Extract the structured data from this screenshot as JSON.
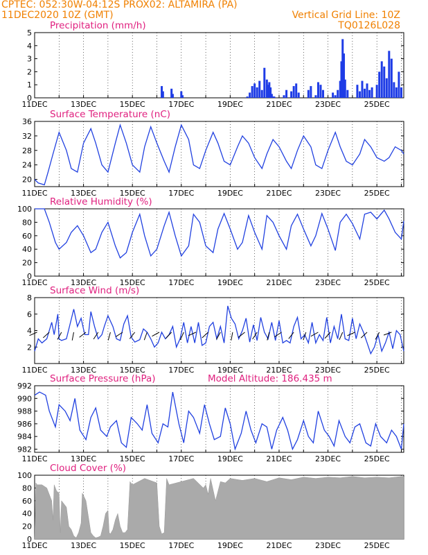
{
  "header": {
    "left1": "CPTEC:   052:30W-04:12S   PROX02: ALTAMIRA (PA)",
    "left2": "11DEC2020  10Z (GMT)",
    "right2": "Vertical Grid Line: 10Z",
    "right3": "TQ0126L028"
  },
  "x_tick_labels": [
    "11DEC",
    "13DEC",
    "15DEC",
    "17DEC",
    "19DEC",
    "21DEC",
    "23DEC",
    "25DEC"
  ],
  "colors": {
    "header": "#f08000",
    "title": "#e0207f",
    "series": "#2040e0",
    "precip_bar": "#1e3ce6",
    "cloud_fill": "#aaaaaa",
    "arrow": "#000000"
  },
  "chart_data": [
    {
      "type": "bar",
      "title": "Precipitation (mm/h)",
      "ylim": [
        0,
        5
      ],
      "yticks": [
        0,
        1,
        2,
        3,
        4,
        5
      ],
      "x_range_days": [
        0,
        15.1
      ],
      "x": [
        5.2,
        5.25,
        5.6,
        5.65,
        6.0,
        6.05,
        8.7,
        8.8,
        8.9,
        9.0,
        9.1,
        9.2,
        9.3,
        9.4,
        9.5,
        9.55,
        9.6,
        9.65,
        9.7,
        9.75,
        9.8,
        10.2,
        10.3,
        10.5,
        10.6,
        10.7,
        10.8,
        11.2,
        11.3,
        11.5,
        11.6,
        11.7,
        11.8,
        12.2,
        12.3,
        12.4,
        12.5,
        12.55,
        12.6,
        12.65,
        12.7,
        12.8,
        13.2,
        13.3,
        13.4,
        13.5,
        13.6,
        13.7,
        13.8,
        14.0,
        14.1,
        14.2,
        14.3,
        14.4,
        14.5,
        14.6,
        14.7,
        14.8,
        14.9,
        15.0
      ],
      "values": [
        0.9,
        0.5,
        0.7,
        0.3,
        0.5,
        0.2,
        0.1,
        0.4,
        0.9,
        1.1,
        0.8,
        1.3,
        0.6,
        2.3,
        1.4,
        1.0,
        1.2,
        0.8,
        0.3,
        0.1,
        0.1,
        0.2,
        0.6,
        0.5,
        0.9,
        1.1,
        0.4,
        0.6,
        0.9,
        0.2,
        1.2,
        1.0,
        0.6,
        0.4,
        0.2,
        0.6,
        1.3,
        2.8,
        4.5,
        3.4,
        1.4,
        0.6,
        1.0,
        0.5,
        1.3,
        0.7,
        1.1,
        0.6,
        0.8,
        1.0,
        2.0,
        2.8,
        2.4,
        1.5,
        3.6,
        3.0,
        1.2,
        0.8,
        2.0,
        0.8
      ]
    },
    {
      "type": "line",
      "title": "Surface Temperature (nC)",
      "ylim": [
        18,
        36
      ],
      "yticks": [
        20,
        24,
        28,
        32,
        36
      ],
      "x_range_days": [
        0,
        15.1
      ],
      "x": [
        0,
        0.15,
        0.4,
        0.55,
        0.75,
        1.0,
        1.3,
        1.5,
        1.75,
        2.0,
        2.3,
        2.5,
        2.75,
        3.0,
        3.3,
        3.5,
        3.75,
        4.0,
        4.3,
        4.5,
        4.75,
        5.0,
        5.3,
        5.5,
        5.75,
        6.0,
        6.3,
        6.5,
        6.75,
        7.0,
        7.3,
        7.5,
        7.75,
        8.0,
        8.3,
        8.5,
        8.75,
        9.0,
        9.3,
        9.5,
        9.75,
        10.0,
        10.3,
        10.5,
        10.75,
        11.0,
        11.3,
        11.5,
        11.75,
        12.0,
        12.3,
        12.5,
        12.75,
        13.0,
        13.3,
        13.5,
        13.75,
        14.0,
        14.3,
        14.5,
        14.75,
        15.0,
        15.1
      ],
      "values": [
        20,
        19,
        18.5,
        22,
        27,
        33,
        28,
        23,
        22,
        30,
        34,
        30,
        24,
        22,
        30,
        35,
        30,
        24,
        22,
        29,
        34.5,
        30,
        25,
        22,
        29,
        35,
        31,
        24,
        23,
        28,
        33,
        30,
        25,
        24,
        29,
        32,
        30,
        26,
        23,
        27,
        31,
        29,
        25,
        23,
        28,
        32,
        29,
        24,
        23,
        28,
        33,
        29,
        25,
        24,
        27,
        31,
        29,
        26,
        25,
        26,
        29,
        28,
        27
      ]
    },
    {
      "type": "line",
      "title": "Relative Humidity (%)",
      "ylim": [
        0,
        100
      ],
      "yticks": [
        0,
        20,
        40,
        60,
        80,
        100
      ],
      "x_range_days": [
        0,
        15.1
      ],
      "x": [
        0,
        0.4,
        0.6,
        0.85,
        1.0,
        1.3,
        1.5,
        1.75,
        2.0,
        2.3,
        2.5,
        2.75,
        3.0,
        3.3,
        3.5,
        3.75,
        4.0,
        4.3,
        4.5,
        4.75,
        5.0,
        5.3,
        5.5,
        5.75,
        6.0,
        6.3,
        6.5,
        6.75,
        7.0,
        7.3,
        7.5,
        7.75,
        8.0,
        8.3,
        8.5,
        8.75,
        9.0,
        9.3,
        9.5,
        9.75,
        10.0,
        10.3,
        10.5,
        10.75,
        11.0,
        11.3,
        11.5,
        11.75,
        12.0,
        12.3,
        12.5,
        12.75,
        13.0,
        13.3,
        13.5,
        13.75,
        14.0,
        14.3,
        14.5,
        14.75,
        15.0,
        15.1
      ],
      "values": [
        100,
        100,
        80,
        50,
        40,
        50,
        65,
        75,
        60,
        35,
        40,
        65,
        80,
        45,
        27,
        35,
        65,
        92,
        60,
        30,
        40,
        75,
        95,
        60,
        30,
        45,
        92,
        80,
        45,
        35,
        70,
        93,
        70,
        40,
        50,
        90,
        65,
        40,
        90,
        80,
        60,
        40,
        75,
        92,
        70,
        45,
        60,
        93,
        70,
        38,
        80,
        92,
        78,
        55,
        92,
        95,
        85,
        98,
        85,
        65,
        55,
        82
      ]
    },
    {
      "type": "line",
      "title": "Surface Wind (m/s)",
      "ylim": [
        0,
        8
      ],
      "yticks": [
        2,
        4,
        6,
        8
      ],
      "x_range_days": [
        0,
        15.1
      ],
      "x": [
        0,
        0.15,
        0.3,
        0.5,
        0.7,
        0.8,
        0.95,
        1.0,
        1.1,
        1.3,
        1.45,
        1.6,
        1.75,
        1.9,
        2.05,
        2.2,
        2.3,
        2.45,
        2.6,
        2.75,
        2.85,
        3.0,
        3.2,
        3.35,
        3.5,
        3.65,
        3.8,
        3.95,
        4.1,
        4.3,
        4.45,
        4.6,
        4.75,
        4.9,
        5.05,
        5.2,
        5.35,
        5.5,
        5.65,
        5.8,
        5.95,
        6.1,
        6.25,
        6.4,
        6.55,
        6.7,
        6.85,
        7.0,
        7.15,
        7.3,
        7.45,
        7.6,
        7.75,
        7.9,
        8.05,
        8.2,
        8.35,
        8.5,
        8.65,
        8.8,
        8.95,
        9.1,
        9.25,
        9.4,
        9.55,
        9.7,
        9.85,
        10.0,
        10.15,
        10.3,
        10.45,
        10.6,
        10.75,
        10.9,
        11.05,
        11.2,
        11.35,
        11.5,
        11.65,
        11.8,
        11.95,
        12.1,
        12.25,
        12.4,
        12.55,
        12.7,
        12.85,
        13.0,
        13.15,
        13.3,
        13.45,
        13.6,
        13.75,
        13.9,
        14.05,
        14.2,
        14.35,
        14.5,
        14.65,
        14.8,
        14.95,
        15.1
      ],
      "values": [
        1.5,
        3.0,
        2.5,
        3.0,
        5.0,
        3.5,
        6.0,
        3.0,
        2.8,
        3.0,
        4.8,
        6.6,
        4.5,
        5.5,
        3.5,
        3.5,
        6.3,
        4.5,
        3.0,
        3.5,
        4.5,
        5.8,
        4.5,
        3.0,
        2.8,
        4.8,
        5.8,
        3.2,
        2.6,
        2.9,
        4.2,
        3.8,
        3.0,
        2.0,
        2.5,
        3.8,
        3.0,
        3.5,
        4.5,
        2.0,
        3.0,
        5.0,
        2.5,
        4.5,
        2.5,
        5.0,
        2.2,
        2.5,
        4.5,
        5.0,
        3.0,
        4.5,
        2.5,
        7.0,
        5.5,
        4.8,
        3.0,
        4.0,
        5.5,
        2.6,
        4.7,
        2.8,
        5.6,
        3.8,
        3.0,
        5.0,
        2.8,
        5.2,
        2.5,
        2.8,
        2.5,
        4.5,
        5.6,
        3.0,
        3.5,
        2.5,
        5.0,
        2.5,
        3.5,
        2.8,
        5.6,
        2.5,
        4.5,
        3.0,
        6.0,
        3.0,
        2.8,
        5.5,
        3.0,
        4.8,
        3.8,
        2.5,
        1.2,
        2.0,
        3.5,
        1.5,
        2.5,
        3.8,
        1.8,
        4.0,
        3.5,
        1.5
      ]
    },
    {
      "type": "line",
      "title": "Surface Pressure (hPa)",
      "annotation": "Model Altitude: 186.435 m",
      "ylim": [
        981.5,
        992
      ],
      "yticks": [
        982,
        984,
        986,
        988,
        990,
        992
      ],
      "x_range_days": [
        0,
        15.1
      ],
      "x": [
        0,
        0.2,
        0.45,
        0.6,
        0.85,
        1.0,
        1.25,
        1.45,
        1.65,
        1.85,
        2.1,
        2.3,
        2.5,
        2.7,
        2.95,
        3.1,
        3.35,
        3.55,
        3.75,
        3.95,
        4.2,
        4.4,
        4.6,
        4.8,
        5.05,
        5.25,
        5.45,
        5.65,
        5.9,
        6.1,
        6.3,
        6.5,
        6.75,
        6.95,
        7.15,
        7.35,
        7.6,
        7.8,
        8.0,
        8.2,
        8.45,
        8.65,
        8.85,
        9.05,
        9.3,
        9.5,
        9.7,
        9.9,
        10.15,
        10.35,
        10.55,
        10.75,
        11.0,
        11.2,
        11.4,
        11.6,
        11.85,
        12.05,
        12.25,
        12.45,
        12.7,
        12.9,
        13.1,
        13.3,
        13.55,
        13.75,
        13.95,
        14.15,
        14.4,
        14.6,
        14.8,
        15.0,
        15.1
      ],
      "values": [
        990.5,
        991,
        990.5,
        988,
        985.5,
        989,
        988,
        986.5,
        990,
        985,
        983.5,
        987,
        988.5,
        985,
        984,
        985.5,
        986.5,
        983,
        982.3,
        987,
        986,
        985,
        989,
        984.5,
        983,
        986,
        985.5,
        991,
        986,
        983,
        988,
        987,
        984.5,
        989,
        986,
        983.5,
        984,
        988.5,
        986,
        982,
        984.5,
        988,
        985,
        983,
        986,
        985.5,
        982,
        985,
        987,
        985,
        982,
        983.5,
        986.5,
        984,
        983,
        988,
        985,
        984,
        982.5,
        986.5,
        984,
        983,
        985.5,
        986,
        983,
        982.5,
        986,
        984,
        983,
        985,
        984,
        982,
        986
      ]
    },
    {
      "type": "area",
      "title": "Cloud Cover (%)",
      "ylim": [
        0,
        100
      ],
      "yticks": [
        0,
        20,
        40,
        60,
        80,
        100
      ],
      "x_range_days": [
        0,
        15.1
      ],
      "x": [
        0,
        0.05,
        0.1,
        0.3,
        0.5,
        0.7,
        0.75,
        0.8,
        0.9,
        1.0,
        1.05,
        1.1,
        1.3,
        1.4,
        1.5,
        1.6,
        1.7,
        1.8,
        1.9,
        1.95,
        2.0,
        2.1,
        2.3,
        2.4,
        2.5,
        2.6,
        2.7,
        2.8,
        2.9,
        3.0,
        3.05,
        3.1,
        3.2,
        3.3,
        3.4,
        3.5,
        3.6,
        3.7,
        3.8,
        3.9,
        4.0,
        4.5,
        5.0,
        5.1,
        5.2,
        5.3,
        5.4,
        5.5,
        6.0,
        6.5,
        6.9,
        7.0,
        7.1,
        7.2,
        7.4,
        7.6,
        7.8,
        8.0,
        8.5,
        9.0,
        9.5,
        10.0,
        10.5,
        11.0,
        11.5,
        12.0,
        12.5,
        13.0,
        13.5,
        14.0,
        14.5,
        15.0,
        15.1
      ],
      "values": [
        0,
        88,
        85,
        85,
        80,
        60,
        30,
        85,
        75,
        72,
        10,
        60,
        50,
        20,
        15,
        5,
        2,
        10,
        25,
        72,
        68,
        60,
        10,
        5,
        2,
        3,
        5,
        20,
        40,
        45,
        10,
        8,
        15,
        30,
        40,
        20,
        10,
        10,
        15,
        90,
        85,
        95,
        88,
        20,
        8,
        10,
        95,
        85,
        90,
        95,
        80,
        85,
        70,
        95,
        60,
        90,
        88,
        95,
        92,
        95,
        90,
        96,
        93,
        97,
        95,
        97,
        96,
        98,
        96,
        97,
        96,
        98,
        98
      ]
    }
  ]
}
